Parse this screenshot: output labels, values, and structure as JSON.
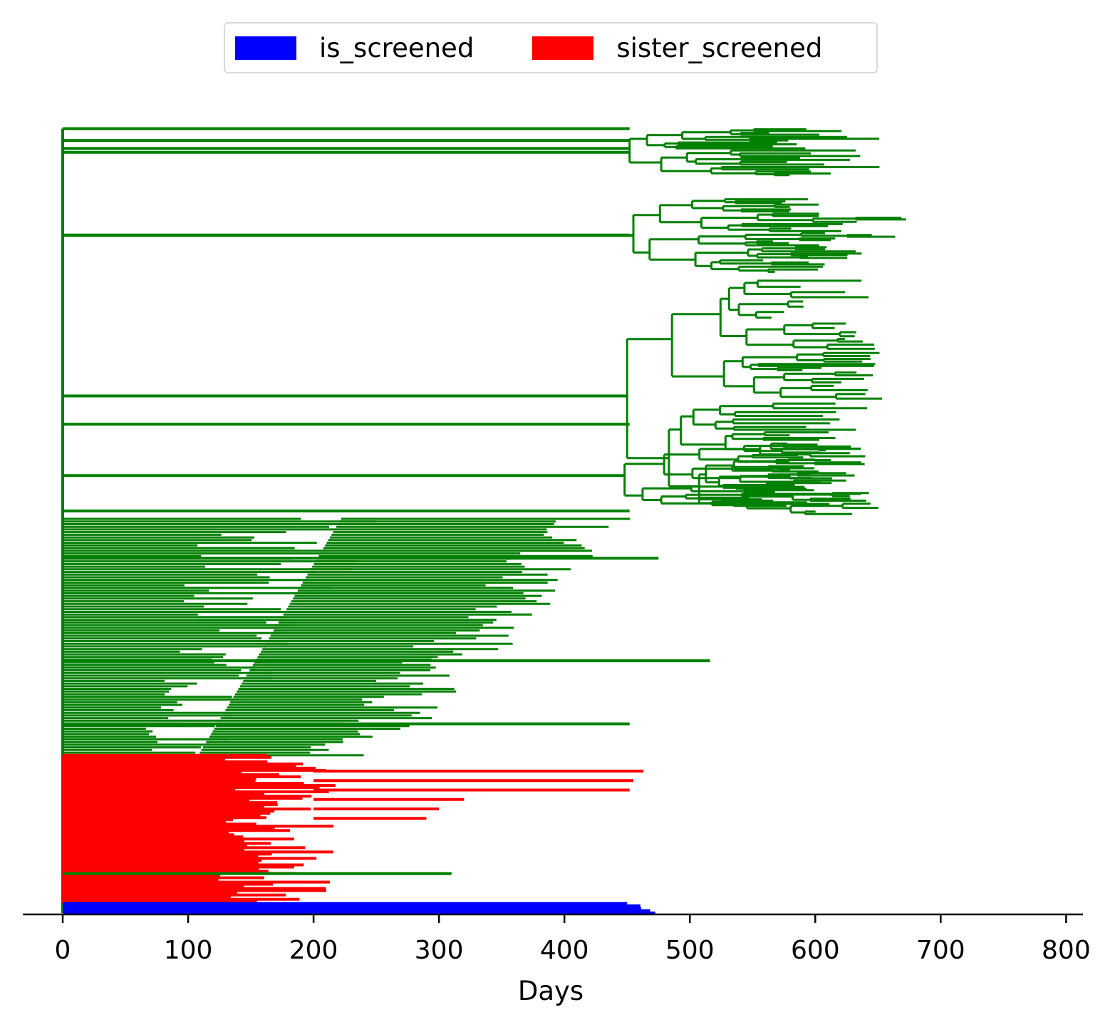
{
  "chart_data": {
    "type": "line",
    "title": "",
    "xlabel": "Days",
    "ylabel": "",
    "xlim": [
      -32,
      813
    ],
    "x_ticks": [
      0,
      100,
      200,
      300,
      400,
      500,
      600,
      700,
      800
    ],
    "x_tick_labels": [
      "0",
      "100",
      "200",
      "300",
      "400",
      "500",
      "600",
      "700",
      "800"
    ],
    "grid": false,
    "legend_position": "top-center",
    "legend": [
      {
        "name": "is_screened",
        "color": "#0000ff"
      },
      {
        "name": "sister_screened",
        "color": "#ff0000"
      }
    ],
    "colors": {
      "default_lineage": "#008000",
      "is_screened": "#0000ff",
      "sister_screened": "#ff0000"
    },
    "clades": [
      {
        "color": "#008000",
        "root": 0,
        "stem": 452,
        "tip_max": 652,
        "tip_min": 560,
        "row_from": 0.935,
        "row_to": 0.995
      },
      {
        "color": "#008000",
        "root": 0,
        "stem": 455,
        "tip_max": 652,
        "tip_min": 520,
        "row_from": 0.812,
        "row_to": 0.907
      },
      {
        "color": "#008000",
        "root": 0,
        "stem": 450,
        "tip_max": 652,
        "tip_min": 540,
        "row_from": 0.505,
        "row_to": 0.807
      },
      {
        "color": "#008000",
        "root": 0,
        "stem": 448,
        "tip_max": 648,
        "tip_min": 520,
        "row_from": 0.515,
        "row_to": 0.595
      }
    ],
    "stems_to_root": [
      0.995,
      0.98,
      0.97,
      0.86,
      0.62,
      0.51
    ],
    "early_green": {
      "color": "#008000",
      "row_from": 0.2,
      "row_to": 0.5,
      "tip_start": [
        370,
        180
      ],
      "tip_end": [
        180,
        90
      ]
    },
    "red_block": {
      "color": "#ff0000",
      "row_from": 0.012,
      "row_to": 0.2,
      "long_tips": [
        463,
        455,
        452,
        320,
        300,
        290
      ]
    },
    "blue_block": {
      "color": "#0000ff",
      "row_from": 0.0,
      "row_to": 0.012,
      "tip_max": 474
    },
    "outliers": [
      {
        "color": "#008000",
        "x": 516,
        "row": 0.32
      },
      {
        "color": "#008000",
        "x": 475,
        "row": 0.45
      },
      {
        "color": "#008000",
        "x": 452,
        "row": 0.24
      },
      {
        "color": "#008000",
        "x": 310,
        "row": 0.05
      }
    ]
  }
}
